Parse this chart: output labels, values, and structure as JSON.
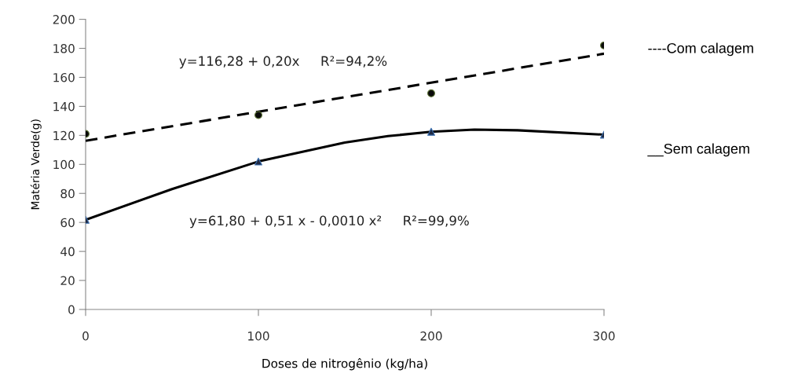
{
  "chart_data": {
    "type": "scatter",
    "xlabel": "Doses de nitrogênio (kg/ha)",
    "ylabel": "Matéria Verde(g)",
    "x": [
      0,
      100,
      200,
      300
    ],
    "xlim": [
      0,
      300
    ],
    "xticks": [
      0,
      100,
      200,
      300
    ],
    "ylim": [
      0,
      200
    ],
    "yticks": [
      0,
      20,
      40,
      60,
      80,
      100,
      120,
      140,
      160,
      180,
      200
    ],
    "grid": false,
    "legend": false,
    "series": [
      {
        "color": "#0a0a0a",
        "marker": "circle",
        "values": [
          121,
          134,
          149,
          182
        ]
      },
      {
        "color": "#1f2a44",
        "marker": "triangle",
        "values": [
          61.8,
          102,
          122.5,
          120.5
        ]
      },
      {
        "type": "line",
        "name": "----Com calagem",
        "color": "#000000",
        "line_style": "dashed",
        "marker": "none",
        "x": [
          0,
          300
        ],
        "values": [
          116.3,
          176.3
        ]
      },
      {
        "type": "line",
        "name": "__Sem calagem",
        "color": "#000000",
        "line_style": "solid",
        "marker": "none",
        "x": [
          0,
          50,
          100,
          150,
          175,
          200,
          225,
          250,
          300
        ],
        "values": [
          61.8,
          83,
          102,
          115,
          119.5,
          122.5,
          124,
          123.5,
          120.5
        ]
      }
    ],
    "annotations": [
      "y=116,28 + 0,20x     R²=94,2%",
      "y=61,80 + 0,51 x - 0,0010 x²     R²=99,9%"
    ]
  }
}
